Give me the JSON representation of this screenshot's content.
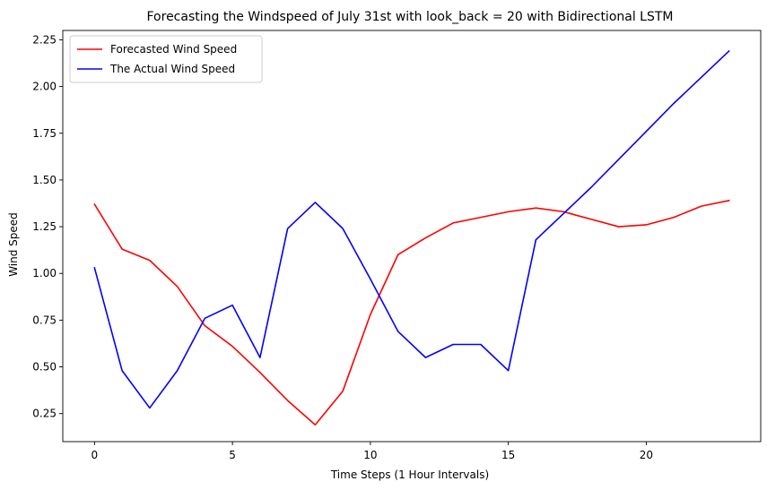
{
  "chart_data": {
    "type": "line",
    "title": "Forecasting the Windspeed of July 31st with look_back = 20 with Bidirectional LSTM",
    "xlabel": "Time Steps (1 Hour Intervals)",
    "ylabel": "Wind Speed",
    "xlim": [
      -1.15,
      24.15
    ],
    "ylim": [
      0.1,
      2.3
    ],
    "x_ticks": [
      0,
      5,
      10,
      15,
      20
    ],
    "x_tick_labels": [
      "0",
      "5",
      "10",
      "15",
      "20"
    ],
    "y_ticks": [
      0.25,
      0.5,
      0.75,
      1.0,
      1.25,
      1.5,
      1.75,
      2.0,
      2.25
    ],
    "y_tick_labels": [
      "0.25",
      "0.50",
      "0.75",
      "1.00",
      "1.25",
      "1.50",
      "1.75",
      "2.00",
      "2.25"
    ],
    "grid": false,
    "legend_position": "top-left",
    "x": [
      0,
      1,
      2,
      3,
      4,
      5,
      6,
      7,
      8,
      9,
      10,
      11,
      12,
      13,
      14,
      15,
      16,
      17,
      18,
      19,
      20,
      21,
      22,
      23
    ],
    "series": [
      {
        "name": "Forecasted Wind Speed",
        "color": "#ff0000",
        "values": [
          1.37,
          1.13,
          1.07,
          0.93,
          0.72,
          0.61,
          0.47,
          0.32,
          0.19,
          0.37,
          0.78,
          1.1,
          1.19,
          1.27,
          1.3,
          1.33,
          1.35,
          1.33,
          1.29,
          1.25,
          1.26,
          1.3,
          1.36,
          1.39
        ]
      },
      {
        "name": "The Actual Wind Speed",
        "color": "#0000ff",
        "values": [
          1.03,
          0.48,
          0.28,
          0.48,
          0.76,
          0.83,
          0.55,
          1.24,
          1.38,
          1.24,
          0.97,
          0.69,
          0.55,
          0.62,
          0.62,
          0.48,
          1.18,
          1.32,
          1.46,
          1.61,
          1.76,
          1.91,
          2.05,
          2.19
        ]
      }
    ]
  }
}
